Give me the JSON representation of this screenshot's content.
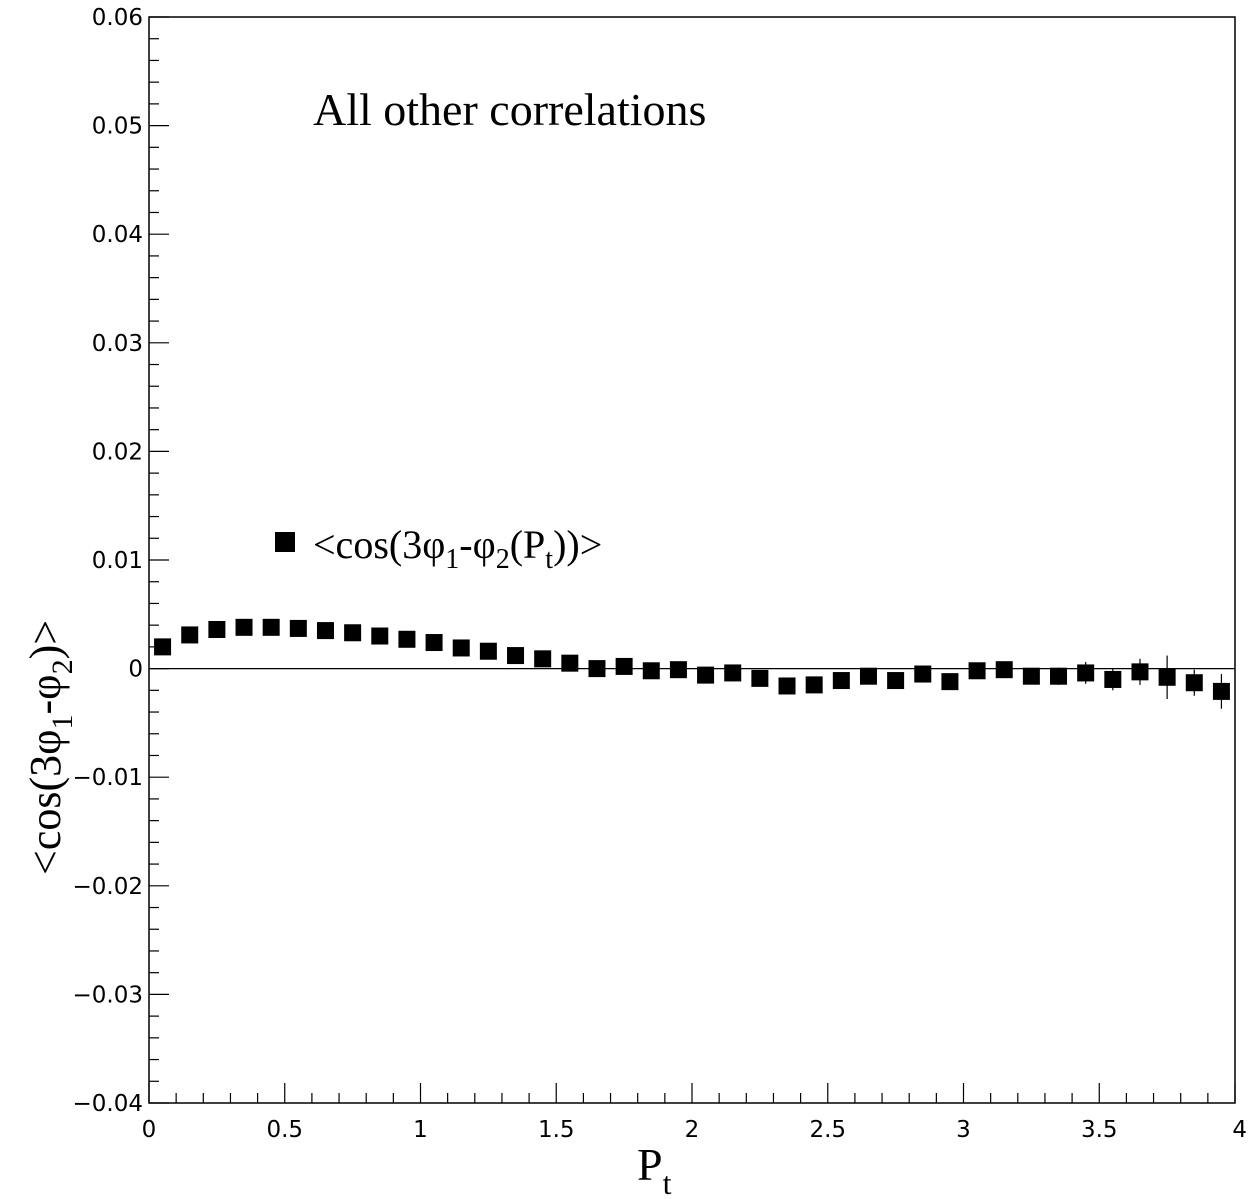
{
  "chart_data": {
    "type": "scatter",
    "annotation": "All other correlations",
    "xlabel": {
      "base": "P",
      "sub": "t"
    },
    "ylabel": {
      "parts": [
        "<cos(3",
        "φ",
        "1",
        "-",
        "φ",
        "2",
        ")>"
      ]
    },
    "legend": {
      "position": "upper-left",
      "entries": [
        {
          "marker": "filled-square",
          "label_parts": [
            "<cos(3",
            "φ",
            "1",
            "-",
            "φ",
            "2",
            "(P",
            "t",
            "))>"
          ]
        }
      ]
    },
    "xlim": [
      0,
      4
    ],
    "ylim": [
      -0.04,
      0.06
    ],
    "x_ticks": [
      {
        "v": 0,
        "label": "0"
      },
      {
        "v": 0.5,
        "label": "0.5"
      },
      {
        "v": 1,
        "label": "1"
      },
      {
        "v": 1.5,
        "label": "1.5"
      },
      {
        "v": 2,
        "label": "2"
      },
      {
        "v": 2.5,
        "label": "2.5"
      },
      {
        "v": 3,
        "label": "3"
      },
      {
        "v": 3.5,
        "label": "3.5"
      },
      {
        "v": 4,
        "label": "4"
      }
    ],
    "y_ticks": [
      {
        "v": -0.04,
        "label": "−0.04"
      },
      {
        "v": -0.03,
        "label": "−0.03"
      },
      {
        "v": -0.02,
        "label": "−0.02"
      },
      {
        "v": -0.01,
        "label": "−0.01"
      },
      {
        "v": 0,
        "label": "0"
      },
      {
        "v": 0.01,
        "label": "0.01"
      },
      {
        "v": 0.02,
        "label": "0.02"
      },
      {
        "v": 0.03,
        "label": "0.03"
      },
      {
        "v": 0.04,
        "label": "0.04"
      },
      {
        "v": 0.05,
        "label": "0.05"
      },
      {
        "v": 0.06,
        "label": "0.06"
      }
    ],
    "zero_line": true,
    "grid": false,
    "series": [
      {
        "marker": "filled-square",
        "points": [
          {
            "x": 0.05,
            "y": 0.002,
            "err": 0.0003
          },
          {
            "x": 0.15,
            "y": 0.0031,
            "err": 0.0003
          },
          {
            "x": 0.25,
            "y": 0.0036,
            "err": 0.0003
          },
          {
            "x": 0.35,
            "y": 0.0038,
            "err": 0.0003
          },
          {
            "x": 0.45,
            "y": 0.0038,
            "err": 0.0003
          },
          {
            "x": 0.55,
            "y": 0.0037,
            "err": 0.0003
          },
          {
            "x": 0.65,
            "y": 0.0035,
            "err": 0.0003
          },
          {
            "x": 0.75,
            "y": 0.0033,
            "err": 0.0003
          },
          {
            "x": 0.85,
            "y": 0.003,
            "err": 0.0003
          },
          {
            "x": 0.95,
            "y": 0.0027,
            "err": 0.0003
          },
          {
            "x": 1.05,
            "y": 0.0024,
            "err": 0.0003
          },
          {
            "x": 1.15,
            "y": 0.0019,
            "err": 0.0003
          },
          {
            "x": 1.25,
            "y": 0.0016,
            "err": 0.0003
          },
          {
            "x": 1.35,
            "y": 0.0012,
            "err": 0.0003
          },
          {
            "x": 1.45,
            "y": 0.0009,
            "err": 0.0003
          },
          {
            "x": 1.55,
            "y": 0.0005,
            "err": 0.0003
          },
          {
            "x": 1.65,
            "y": 0.0,
            "err": 0.0003
          },
          {
            "x": 1.75,
            "y": 0.0002,
            "err": 0.0003
          },
          {
            "x": 1.85,
            "y": -0.0002,
            "err": 0.0003
          },
          {
            "x": 1.95,
            "y": -0.0001,
            "err": 0.0003
          },
          {
            "x": 2.05,
            "y": -0.0006,
            "err": 0.0004
          },
          {
            "x": 2.15,
            "y": -0.0004,
            "err": 0.0004
          },
          {
            "x": 2.25,
            "y": -0.0009,
            "err": 0.0004
          },
          {
            "x": 2.35,
            "y": -0.0016,
            "err": 0.0004
          },
          {
            "x": 2.45,
            "y": -0.0015,
            "err": 0.0004
          },
          {
            "x": 2.55,
            "y": -0.0011,
            "err": 0.0004
          },
          {
            "x": 2.65,
            "y": -0.0007,
            "err": 0.0005
          },
          {
            "x": 2.75,
            "y": -0.0011,
            "err": 0.0005
          },
          {
            "x": 2.85,
            "y": -0.0005,
            "err": 0.0005
          },
          {
            "x": 2.95,
            "y": -0.0012,
            "err": 0.0005
          },
          {
            "x": 3.05,
            "y": -0.0002,
            "err": 0.0006
          },
          {
            "x": 3.15,
            "y": -0.0001,
            "err": 0.0006
          },
          {
            "x": 3.25,
            "y": -0.0007,
            "err": 0.0006
          },
          {
            "x": 3.35,
            "y": -0.0007,
            "err": 0.0008
          },
          {
            "x": 3.45,
            "y": -0.0004,
            "err": 0.001
          },
          {
            "x": 3.55,
            "y": -0.001,
            "err": 0.001
          },
          {
            "x": 3.65,
            "y": -0.0003,
            "err": 0.0012
          },
          {
            "x": 3.75,
            "y": -0.0008,
            "err": 0.002
          },
          {
            "x": 3.85,
            "y": -0.0013,
            "err": 0.0012
          },
          {
            "x": 3.95,
            "y": -0.0021,
            "err": 0.0016
          }
        ]
      }
    ]
  }
}
